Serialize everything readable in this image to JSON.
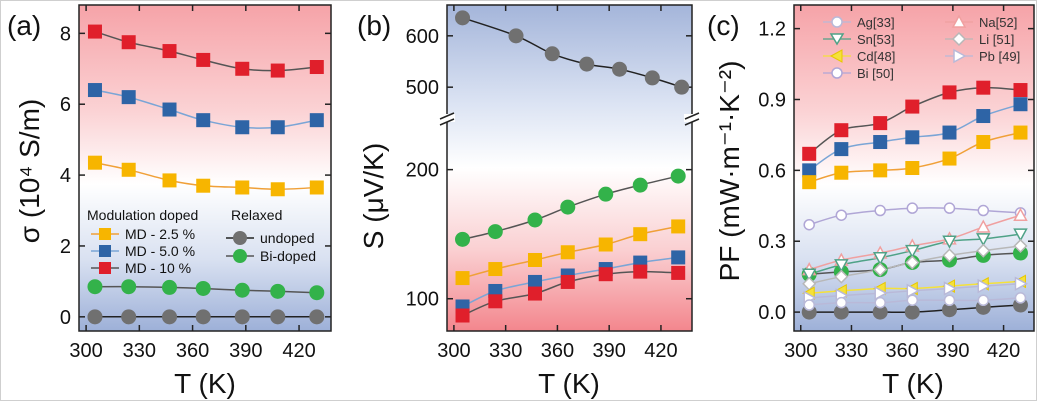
{
  "chart_data": [
    {
      "type": "line",
      "panel_label": "(a)",
      "ylabel": "σ (10⁴ S/m)",
      "xlabel": "T (K)",
      "ylim": [
        -0.4,
        8.8
      ],
      "xlim": [
        296,
        438
      ],
      "background": "red-top to white to blue-bottom gradient",
      "x_ticks": [
        "300",
        "330",
        "360",
        "390",
        "420"
      ],
      "y_ticks": [
        "0",
        "2",
        "4",
        "6",
        "8"
      ],
      "legend_groups": [
        "Modulation doped",
        "Relaxed"
      ],
      "x": [
        305,
        324,
        347,
        366,
        388,
        408,
        430
      ],
      "series": [
        {
          "name": "MD - 2.5 %",
          "marker": "square",
          "color": "#f7b500",
          "line_color": "#f0a038",
          "values": [
            4.35,
            4.15,
            3.85,
            3.7,
            3.65,
            3.6,
            3.65
          ]
        },
        {
          "name": "MD - 5.0 %",
          "marker": "square",
          "color": "#2e64a6",
          "line_color": "#7aa5d6",
          "values": [
            6.4,
            6.2,
            5.85,
            5.55,
            5.35,
            5.35,
            5.55
          ]
        },
        {
          "name": "MD - 10 %",
          "marker": "square",
          "color": "#e01f2b",
          "line_color": "#555555",
          "values": [
            8.05,
            7.75,
            7.5,
            7.25,
            7.0,
            6.95,
            7.05
          ]
        },
        {
          "name": "undoped",
          "marker": "circle",
          "color": "#707070",
          "line_color": "#222222",
          "values": [
            0.0,
            0.0,
            0.0,
            0.0,
            0.0,
            0.0,
            0.0
          ]
        },
        {
          "name": "Bi-doped",
          "marker": "circle",
          "color": "#33b24a",
          "line_color": "#555555",
          "values": [
            0.85,
            0.85,
            0.83,
            0.8,
            0.75,
            0.72,
            0.68
          ]
        }
      ]
    },
    {
      "type": "line",
      "panel_label": "(b)",
      "ylabel": "S (μV/K)",
      "xlabel": "T (K)",
      "y_scale": "broken axis",
      "ylim_lower": [
        75,
        240
      ],
      "ylim_upper": [
        440,
        660
      ],
      "xlim": [
        296,
        438
      ],
      "background": "blue-top to white to red-bottom gradient",
      "x_ticks": [
        "300",
        "330",
        "360",
        "390",
        "420"
      ],
      "y_ticks": [
        "100",
        "200",
        "500",
        "600"
      ],
      "x": [
        305,
        324,
        347,
        366,
        388,
        408,
        430
      ],
      "x_undoped": [
        305,
        336,
        357,
        377,
        396,
        415,
        432
      ],
      "series": [
        {
          "name": "undoped",
          "marker": "circle",
          "color": "#707070",
          "line_color": "#222222",
          "values": [
            635,
            600,
            565,
            545,
            535,
            518,
            500
          ]
        },
        {
          "name": "Bi-doped",
          "marker": "circle",
          "color": "#33b24a",
          "line_color": "#555555",
          "values": [
            146,
            152,
            161,
            171,
            181,
            188,
            195
          ]
        },
        {
          "name": "MD - 2.5 %",
          "marker": "square",
          "color": "#f7b500",
          "line_color": "#f0a038",
          "values": [
            116,
            123,
            130,
            136,
            142,
            150,
            156
          ]
        },
        {
          "name": "MD - 5.0 %",
          "marker": "square",
          "color": "#2e64a6",
          "line_color": "#7aa5d6",
          "values": [
            94,
            106,
            113,
            118,
            123,
            128,
            132
          ]
        },
        {
          "name": "MD - 10 %",
          "marker": "square",
          "color": "#e01f2b",
          "line_color": "#555555",
          "values": [
            87,
            98,
            104,
            113,
            119,
            121,
            120
          ]
        }
      ]
    },
    {
      "type": "line",
      "panel_label": "(c)",
      "ylabel": "PF (mW·m⁻¹·K⁻²)",
      "xlabel": "T (K)",
      "ylim": [
        -0.08,
        1.3
      ],
      "xlim": [
        296,
        438
      ],
      "background": "red-top to white to blue-bottom gradient",
      "x_ticks": [
        "300",
        "330",
        "360",
        "390",
        "420"
      ],
      "y_ticks": [
        "0.0",
        "0.3",
        "0.6",
        "0.9",
        "1.2"
      ],
      "legend": [
        "Ag[33]",
        "Sn[53]",
        "Cd[48]",
        "Bi [50]",
        "Na[52]",
        "Li  [51]",
        "Pb [49]"
      ],
      "x": [
        305,
        324,
        347,
        366,
        388,
        408,
        430
      ],
      "series": [
        {
          "name": "MD - 10 %",
          "marker": "square",
          "color": "#e01f2b",
          "line_color": "#555555",
          "values": [
            0.67,
            0.77,
            0.8,
            0.87,
            0.93,
            0.95,
            0.94
          ]
        },
        {
          "name": "MD - 5.0 %",
          "marker": "square",
          "color": "#2e64a6",
          "line_color": "#7aa5d6",
          "values": [
            0.6,
            0.69,
            0.72,
            0.74,
            0.76,
            0.83,
            0.88
          ]
        },
        {
          "name": "MD - 2.5 %",
          "marker": "square",
          "color": "#f7b500",
          "line_color": "#f0a038",
          "values": [
            0.55,
            0.59,
            0.6,
            0.61,
            0.65,
            0.72,
            0.76
          ]
        },
        {
          "name": "Bi-doped",
          "marker": "circle",
          "color": "#33b24a",
          "line_color": "#555555",
          "values": [
            0.16,
            0.17,
            0.18,
            0.21,
            0.22,
            0.24,
            0.25
          ]
        },
        {
          "name": "undoped",
          "marker": "circle",
          "color": "#707070",
          "line_color": "#222222",
          "values": [
            0.0,
            0.0,
            0.0,
            0.0,
            0.01,
            0.02,
            0.03
          ]
        },
        {
          "name": "Bi [50]",
          "marker": "circle-open",
          "color": "#b0a6d6",
          "values": [
            0.37,
            0.41,
            0.43,
            0.44,
            0.44,
            0.43,
            0.42
          ]
        },
        {
          "name": "Na[52]",
          "marker": "triangle-up-open",
          "color": "#f0a0a0",
          "values": [
            0.18,
            0.22,
            0.25,
            0.28,
            0.31,
            0.36,
            0.41
          ]
        },
        {
          "name": "Sn[53]",
          "marker": "triangle-down-open",
          "color": "#4fa287",
          "values": [
            0.16,
            0.2,
            0.23,
            0.26,
            0.3,
            0.31,
            0.33
          ]
        },
        {
          "name": "Li  [51]",
          "marker": "diamond-open",
          "color": "#b8b8b8",
          "values": [
            0.12,
            0.15,
            0.18,
            0.21,
            0.24,
            0.26,
            0.28
          ]
        },
        {
          "name": "Cd[48]",
          "marker": "triangle-left",
          "color": "#f5e13a",
          "values": [
            0.08,
            0.09,
            0.1,
            0.1,
            0.11,
            0.12,
            0.13
          ]
        },
        {
          "name": "Pb [49]",
          "marker": "triangle-right-open",
          "color": "#b9b9d8",
          "values": [
            0.06,
            0.07,
            0.08,
            0.09,
            0.1,
            0.11,
            0.12
          ]
        },
        {
          "name": "Ag[33]",
          "marker": "circle-open",
          "color": "#b9b9d8",
          "values": [
            0.03,
            0.04,
            0.04,
            0.05,
            0.05,
            0.05,
            0.06
          ]
        }
      ]
    }
  ]
}
